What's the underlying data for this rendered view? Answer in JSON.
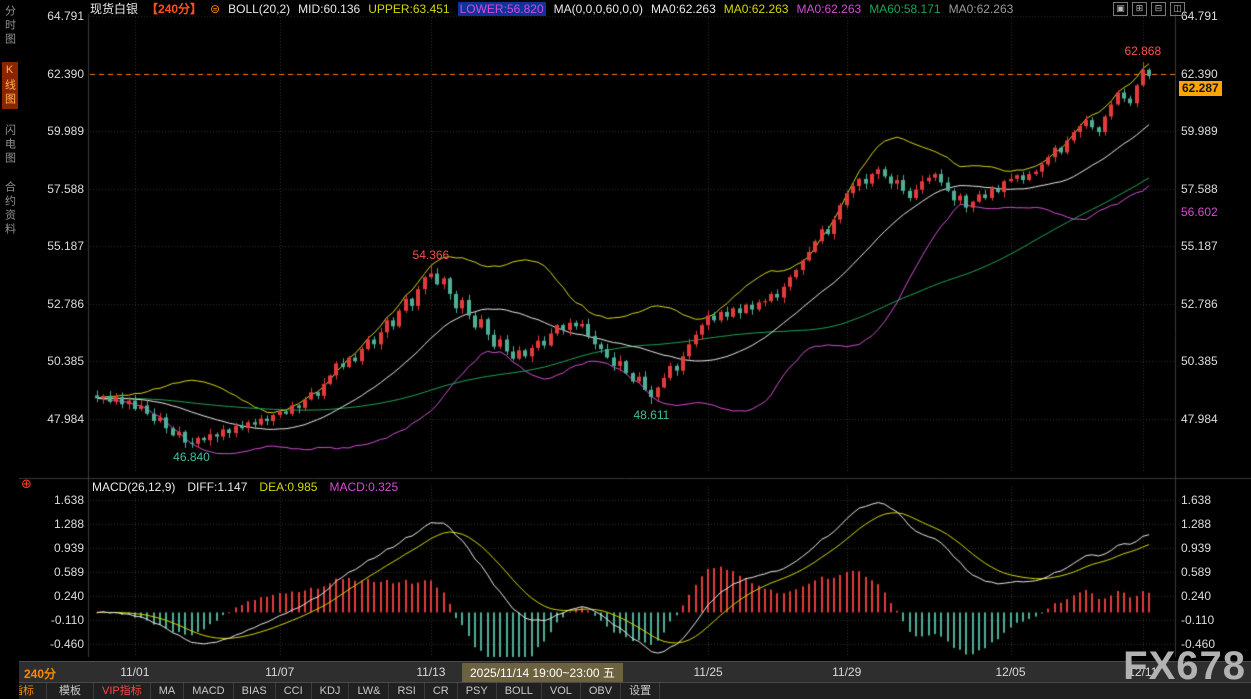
{
  "watermark": "FX678",
  "sidebar": {
    "items": [
      {
        "label": "分时图",
        "active": false
      },
      {
        "label": "K线图",
        "active": true
      },
      {
        "label": "闪电图",
        "active": false
      },
      {
        "label": "合约资料",
        "active": false
      }
    ]
  },
  "header": {
    "symbol": "现货白银",
    "period": "【240分】",
    "menu_icon": "⊜",
    "boll": "BOLL(20,2)",
    "mid": "MID:60.136",
    "upper": "UPPER:63.451",
    "lower": "LOWER:56.820",
    "ma": "MA(0,0,0,60,0,0)",
    "ma_values": [
      {
        "text": "MA0:62.263",
        "color": "#e8e8e8"
      },
      {
        "text": "MA0:62.263",
        "color": "#d6d600"
      },
      {
        "text": "MA0:62.263",
        "color": "#d24ed2"
      },
      {
        "text": "MA60:58.171",
        "color": "#1fa355"
      },
      {
        "text": "MA0:62.263",
        "color": "#9a9a9a"
      }
    ],
    "icons": [
      {
        "name": "layout-single-icon",
        "glyph": "▣"
      },
      {
        "name": "layout-grid-icon",
        "glyph": "⊞"
      },
      {
        "name": "layout-rows-icon",
        "glyph": "⊟"
      },
      {
        "name": "layout-cols-icon",
        "glyph": "◫"
      }
    ]
  },
  "macd_panel": {
    "label": "MACD(26,12,9)",
    "diff": "DIFF:1.147",
    "dea": "DEA:0.985",
    "macd": "MACD:0.325",
    "add_icon": "⊕"
  },
  "timeline": {
    "period": "240分",
    "highlight": "2025/11/14 19:00~23:00 五"
  },
  "toolbar": {
    "tabs": [
      {
        "label": "指标",
        "active": true
      },
      {
        "label": "模板",
        "active": false
      }
    ],
    "buttons": [
      {
        "label": "VIP指标",
        "color": "#ff4444"
      },
      {
        "label": "MA"
      },
      {
        "label": "MACD"
      },
      {
        "label": "BIAS"
      },
      {
        "label": "CCI"
      },
      {
        "label": "KDJ"
      },
      {
        "label": "LW&"
      },
      {
        "label": "RSI"
      },
      {
        "label": "CR"
      },
      {
        "label": "PSY"
      },
      {
        "label": "BOLL"
      },
      {
        "label": "VOL"
      },
      {
        "label": "OBV"
      },
      {
        "label": "设置"
      }
    ]
  },
  "colors": {
    "up": "#e23b3b",
    "down": "#4fae96",
    "boll_mid": "#e8e8e8",
    "boll_upper": "#d4d41e",
    "boll_lower": "#d24ed2",
    "ma60": "#1fa355",
    "diff": "#e8e8e8",
    "dea": "#d6d600",
    "hist_up": "#e23b3b",
    "hist_down": "#4fae96",
    "dashed": "#ff7e00",
    "tag_bg": "#ffa400",
    "ann_up": "#ff4d4d",
    "ann_down": "#3fbfa0",
    "accent": "#ff8800"
  },
  "chart_data": {
    "type": "candlestick",
    "symbol": "现货白银",
    "period_minutes": 240,
    "price_axis": [
      64.791,
      62.39,
      59.989,
      57.588,
      55.187,
      52.786,
      50.385,
      47.984
    ],
    "macd_axis": [
      1.638,
      1.288,
      0.939,
      0.589,
      0.24,
      -0.11,
      -0.46
    ],
    "dashed_level": 62.39,
    "last_price": 62.287,
    "lower_band_tag": 56.602,
    "indicators": {
      "boll": {
        "period": 20,
        "mult": 2,
        "mid": 60.136,
        "upper": 63.451,
        "lower": 56.82
      },
      "ma60": 58.171,
      "macd": {
        "fast": 12,
        "slow": 26,
        "signal": 9,
        "diff": 1.147,
        "dea": 0.985,
        "macd": 0.325
      }
    },
    "annotations": [
      {
        "index": 15,
        "price": 46.84,
        "text": "46.840",
        "side": "low"
      },
      {
        "index": 53,
        "price": 54.366,
        "text": "54.366",
        "side": "high"
      },
      {
        "index": 88,
        "price": 48.611,
        "text": "48.611",
        "side": "low"
      },
      {
        "index": 166,
        "price": 62.868,
        "text": "62.868",
        "side": "high"
      }
    ],
    "dates": [
      {
        "i": 6,
        "label": "11/01"
      },
      {
        "i": 29,
        "label": "11/07"
      },
      {
        "i": 53,
        "label": "11/13"
      },
      {
        "i": 97,
        "label": "11/25"
      },
      {
        "i": 119,
        "label": "11/29"
      },
      {
        "i": 145,
        "label": "12/05"
      },
      {
        "i": 166,
        "label": "12/11"
      }
    ],
    "closes": [
      48.85,
      48.95,
      48.7,
      48.9,
      48.6,
      48.75,
      48.4,
      48.55,
      48.2,
      47.9,
      48.05,
      47.6,
      47.3,
      47.45,
      47.0,
      46.95,
      47.2,
      47.1,
      47.35,
      47.25,
      47.55,
      47.4,
      47.7,
      47.6,
      47.85,
      47.75,
      48.0,
      47.9,
      48.15,
      48.3,
      48.2,
      48.55,
      48.45,
      48.8,
      49.1,
      48.95,
      49.45,
      49.8,
      50.3,
      50.15,
      50.55,
      50.4,
      50.9,
      51.3,
      51.1,
      51.6,
      52.1,
      51.85,
      52.5,
      53.0,
      52.7,
      53.4,
      53.9,
      54.05,
      53.6,
      53.85,
      53.2,
      52.6,
      52.95,
      52.3,
      51.8,
      52.15,
      51.5,
      51.0,
      51.3,
      50.8,
      50.5,
      50.85,
      50.6,
      50.95,
      51.25,
      51.05,
      51.55,
      51.9,
      51.7,
      52.0,
      51.85,
      51.95,
      51.45,
      51.1,
      50.9,
      50.55,
      50.2,
      50.4,
      49.9,
      49.55,
      49.75,
      49.2,
      48.9,
      49.3,
      49.7,
      50.2,
      50.0,
      50.6,
      51.1,
      51.5,
      51.9,
      52.3,
      52.1,
      52.45,
      52.25,
      52.6,
      52.4,
      52.75,
      52.55,
      52.85,
      52.9,
      53.2,
      53.05,
      53.5,
      53.9,
      54.2,
      54.6,
      54.95,
      55.4,
      55.9,
      55.7,
      56.3,
      56.9,
      57.4,
      57.7,
      58.0,
      57.8,
      58.2,
      58.4,
      58.1,
      57.8,
      57.95,
      57.5,
      57.2,
      57.55,
      57.9,
      58.05,
      58.2,
      57.85,
      57.5,
      57.1,
      57.3,
      56.8,
      57.05,
      57.35,
      57.2,
      57.6,
      57.45,
      57.9,
      58.0,
      58.15,
      57.95,
      58.2,
      58.3,
      58.6,
      58.9,
      59.3,
      59.1,
      59.6,
      59.95,
      60.2,
      60.45,
      60.15,
      59.95,
      60.6,
      61.1,
      61.6,
      61.35,
      61.15,
      61.9,
      62.55,
      62.29
    ]
  }
}
